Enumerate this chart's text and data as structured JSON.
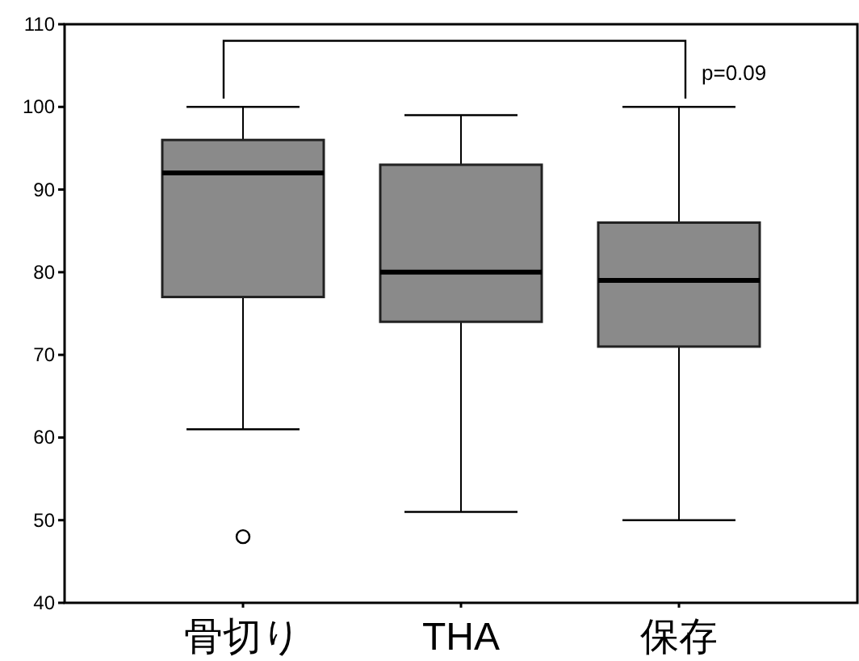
{
  "chart_data": {
    "type": "box",
    "categories": [
      "骨切り",
      "THA",
      "保存"
    ],
    "color": "#8a8a8a",
    "boxes": [
      {
        "low": 61,
        "q1": 77,
        "median": 92,
        "q3": 96,
        "high": 100,
        "outliers": [
          48
        ]
      },
      {
        "low": 51,
        "q1": 74,
        "median": 80,
        "q3": 93,
        "high": 99
      },
      {
        "low": 50,
        "q1": 71,
        "median": 79,
        "q3": 86,
        "high": 100
      }
    ],
    "ylim": [
      40,
      110
    ],
    "yticks": [
      40,
      50,
      60,
      70,
      80,
      90,
      100,
      110
    ],
    "annotations": [
      "p=0.09"
    ]
  }
}
